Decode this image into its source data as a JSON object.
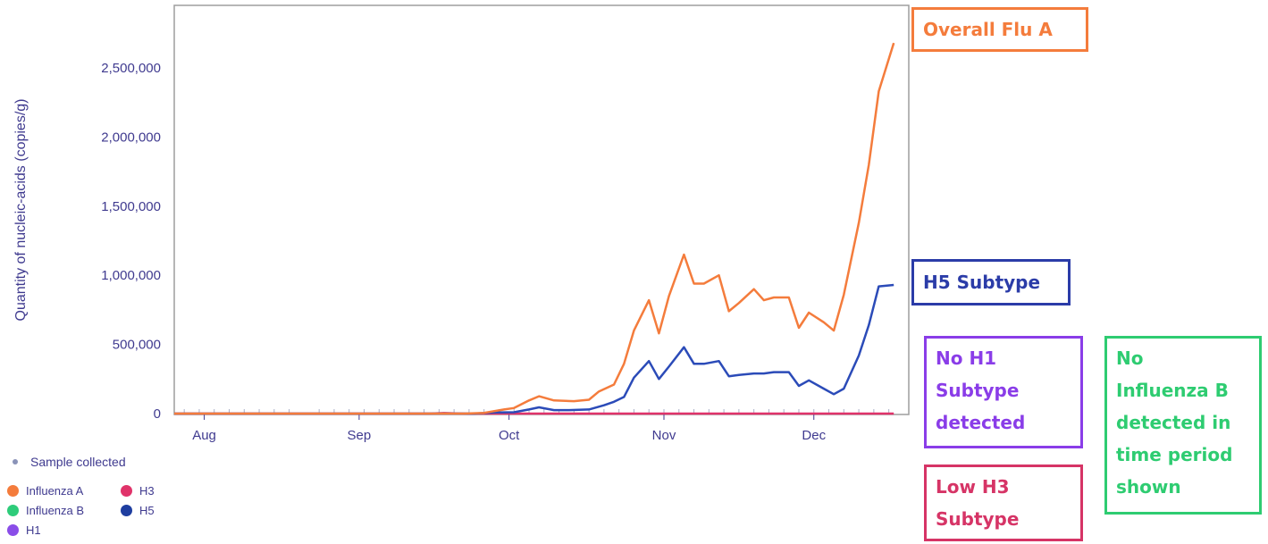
{
  "chart_data": {
    "type": "line",
    "title": "",
    "ylabel": "Quantity of nucleic-acids (copies/g)",
    "xlabel": "",
    "ylim": [
      0,
      2900000
    ],
    "y_ticks": [
      0,
      500000,
      1000000,
      1500000,
      2000000,
      2500000
    ],
    "y_tick_labels": [
      "0",
      "500,000",
      "1,000,000",
      "1,500,000",
      "2,000,000",
      "2,500,000"
    ],
    "x_range": [
      "2024-07-26",
      "2024-12-20"
    ],
    "x_ticks": [
      "2024-08-01",
      "2024-09-01",
      "2024-10-01",
      "2024-11-01",
      "2024-12-01"
    ],
    "x_tick_labels": [
      "Aug",
      "Sep",
      "Oct",
      "Nov",
      "Dec"
    ],
    "grid": false,
    "series": [
      {
        "name": "Influenza A",
        "color": "#f47c3c",
        "points": [
          [
            "2024-07-26",
            0
          ],
          [
            "2024-09-01",
            0
          ],
          [
            "2024-09-22",
            0
          ],
          [
            "2024-09-26",
            5000
          ],
          [
            "2024-09-30",
            30000
          ],
          [
            "2024-10-02",
            40000
          ],
          [
            "2024-10-05",
            95000
          ],
          [
            "2024-10-07",
            125000
          ],
          [
            "2024-10-10",
            95000
          ],
          [
            "2024-10-14",
            90000
          ],
          [
            "2024-10-17",
            100000
          ],
          [
            "2024-10-19",
            160000
          ],
          [
            "2024-10-22",
            210000
          ],
          [
            "2024-10-24",
            360000
          ],
          [
            "2024-10-26",
            600000
          ],
          [
            "2024-10-29",
            820000
          ],
          [
            "2024-10-31",
            580000
          ],
          [
            "2024-11-02",
            850000
          ],
          [
            "2024-11-05",
            1150000
          ],
          [
            "2024-11-07",
            940000
          ],
          [
            "2024-11-09",
            940000
          ],
          [
            "2024-11-12",
            1000000
          ],
          [
            "2024-11-14",
            740000
          ],
          [
            "2024-11-16",
            800000
          ],
          [
            "2024-11-19",
            900000
          ],
          [
            "2024-11-21",
            820000
          ],
          [
            "2024-11-23",
            840000
          ],
          [
            "2024-11-26",
            840000
          ],
          [
            "2024-11-28",
            620000
          ],
          [
            "2024-11-30",
            730000
          ],
          [
            "2024-12-03",
            660000
          ],
          [
            "2024-12-05",
            600000
          ],
          [
            "2024-12-07",
            860000
          ],
          [
            "2024-12-10",
            1380000
          ],
          [
            "2024-12-12",
            1800000
          ],
          [
            "2024-12-14",
            2330000
          ],
          [
            "2024-12-17",
            2680000
          ]
        ]
      },
      {
        "name": "H5",
        "color": "#2b4bb8",
        "points": [
          [
            "2024-07-26",
            0
          ],
          [
            "2024-09-01",
            0
          ],
          [
            "2024-09-24",
            0
          ],
          [
            "2024-09-28",
            8000
          ],
          [
            "2024-10-02",
            10000
          ],
          [
            "2024-10-05",
            30000
          ],
          [
            "2024-10-07",
            45000
          ],
          [
            "2024-10-10",
            25000
          ],
          [
            "2024-10-13",
            25000
          ],
          [
            "2024-10-17",
            30000
          ],
          [
            "2024-10-20",
            60000
          ],
          [
            "2024-10-22",
            85000
          ],
          [
            "2024-10-24",
            120000
          ],
          [
            "2024-10-26",
            260000
          ],
          [
            "2024-10-29",
            380000
          ],
          [
            "2024-10-31",
            250000
          ],
          [
            "2024-11-02",
            340000
          ],
          [
            "2024-11-05",
            480000
          ],
          [
            "2024-11-07",
            360000
          ],
          [
            "2024-11-09",
            360000
          ],
          [
            "2024-11-12",
            380000
          ],
          [
            "2024-11-14",
            270000
          ],
          [
            "2024-11-16",
            280000
          ],
          [
            "2024-11-19",
            290000
          ],
          [
            "2024-11-21",
            290000
          ],
          [
            "2024-11-23",
            300000
          ],
          [
            "2024-11-26",
            300000
          ],
          [
            "2024-11-28",
            200000
          ],
          [
            "2024-11-30",
            240000
          ],
          [
            "2024-12-03",
            180000
          ],
          [
            "2024-12-05",
            140000
          ],
          [
            "2024-12-07",
            180000
          ],
          [
            "2024-12-10",
            420000
          ],
          [
            "2024-12-12",
            640000
          ],
          [
            "2024-12-14",
            920000
          ],
          [
            "2024-12-17",
            930000
          ]
        ]
      },
      {
        "name": "H3",
        "color": "#e0336a",
        "points": [
          [
            "2024-07-26",
            0
          ],
          [
            "2024-09-15",
            0
          ],
          [
            "2024-09-18",
            4000
          ],
          [
            "2024-09-22",
            0
          ],
          [
            "2024-12-17",
            0
          ]
        ]
      }
    ],
    "sample_dates": [
      "2024-07-28",
      "2024-07-31",
      "2024-08-03",
      "2024-08-06",
      "2024-08-09",
      "2024-08-12",
      "2024-08-15",
      "2024-08-18",
      "2024-08-24",
      "2024-08-27",
      "2024-08-30",
      "2024-09-02",
      "2024-09-05",
      "2024-09-08",
      "2024-09-11",
      "2024-09-14",
      "2024-09-17",
      "2024-09-20",
      "2024-09-23",
      "2024-09-26",
      "2024-09-29",
      "2024-10-02",
      "2024-10-05",
      "2024-10-08",
      "2024-10-11",
      "2024-10-14",
      "2024-10-17",
      "2024-10-20",
      "2024-10-23",
      "2024-10-26",
      "2024-10-29",
      "2024-11-01",
      "2024-11-04",
      "2024-11-07",
      "2024-11-10",
      "2024-11-13",
      "2024-11-16",
      "2024-11-19",
      "2024-11-22",
      "2024-11-25",
      "2024-11-28",
      "2024-12-01",
      "2024-12-04",
      "2024-12-07",
      "2024-12-10",
      "2024-12-13",
      "2024-12-16"
    ]
  },
  "legend": {
    "sample_label": "Sample collected",
    "sample_color": "#8a93b8",
    "items": [
      {
        "label": "Influenza A",
        "color": "#f47c3c"
      },
      {
        "label": "H3",
        "color": "#e0336a"
      },
      {
        "label": "Influenza B",
        "color": "#2ecc7a"
      },
      {
        "label": "H5",
        "color": "#1f3ea0"
      },
      {
        "label": "H1",
        "color": "#8a4de8"
      }
    ]
  },
  "callouts": [
    {
      "id": "overall-flu-a",
      "lines": [
        "Overall Flu A"
      ],
      "color": "#f47c3c"
    },
    {
      "id": "h5-subtype",
      "lines": [
        "H5 Subtype"
      ],
      "color": "#2b3ca8"
    },
    {
      "id": "no-h1",
      "lines": [
        "No H1",
        "Subtype",
        "detected"
      ],
      "color": "#8a3de8"
    },
    {
      "id": "no-influenza-b",
      "lines": [
        "No",
        "Influenza B",
        "detected in",
        "time period",
        "shown"
      ],
      "color": "#2ecc71"
    },
    {
      "id": "low-h3",
      "lines": [
        "Low H3",
        "Subtype"
      ],
      "color": "#d63466"
    }
  ]
}
